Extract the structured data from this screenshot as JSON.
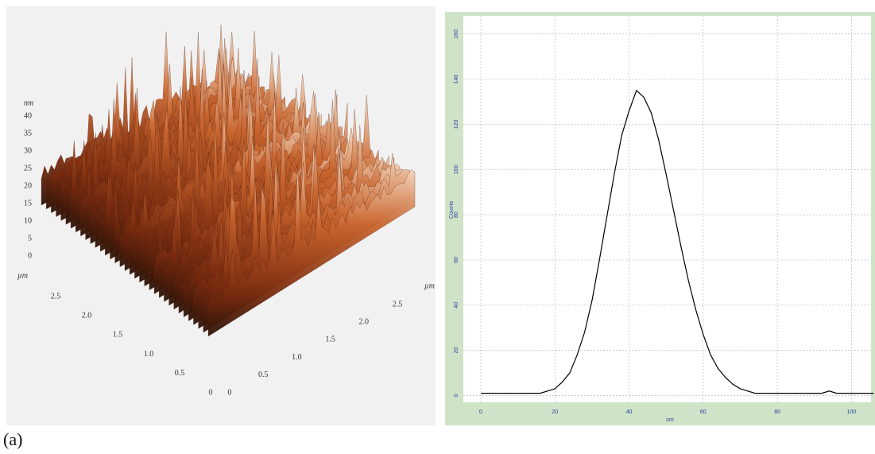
{
  "caption": "(a)",
  "surface": {
    "z_unit": "nm",
    "x_unit": "µm",
    "y_unit": "µm",
    "z_ticks": [
      "0",
      "5",
      "10",
      "15",
      "20",
      "25",
      "30",
      "35",
      "40"
    ],
    "x_ticks": [
      "0",
      "0.5",
      "1.0",
      "1.5",
      "2.0",
      "2.5"
    ],
    "y_ticks": [
      "0",
      "0.5",
      "1.0",
      "1.5",
      "2.0",
      "2.5"
    ]
  },
  "chart_data": {
    "type": "line",
    "xlabel": "nm",
    "ylabel": "Counts",
    "color": "#000000",
    "grid": true,
    "x": [
      0,
      2,
      4,
      6,
      8,
      10,
      12,
      14,
      16,
      18,
      20,
      22,
      24,
      26,
      28,
      30,
      32,
      34,
      36,
      38,
      40,
      42,
      44,
      46,
      48,
      50,
      52,
      54,
      56,
      58,
      60,
      62,
      64,
      66,
      68,
      70,
      72,
      74,
      76,
      78,
      80,
      82,
      84,
      86,
      88,
      90,
      92,
      94,
      96,
      98,
      100,
      102,
      104,
      106
    ],
    "values": [
      1,
      1,
      1,
      1,
      1,
      1,
      1,
      1,
      1,
      2,
      3,
      6,
      10,
      18,
      28,
      42,
      60,
      79,
      98,
      115,
      126,
      135,
      132,
      125,
      113,
      98,
      82,
      66,
      51,
      38,
      27,
      18,
      12,
      8,
      5,
      3,
      2,
      1,
      1,
      1,
      1,
      1,
      1,
      1,
      1,
      1,
      1,
      2,
      1,
      1,
      1,
      1,
      1,
      1
    ],
    "xlim": [
      0,
      110
    ],
    "ylim": [
      -3,
      168
    ],
    "xticks": [
      0,
      20,
      40,
      60,
      80,
      100
    ],
    "yticks": [
      0,
      20,
      40,
      60,
      80,
      100,
      120,
      140,
      160
    ]
  }
}
